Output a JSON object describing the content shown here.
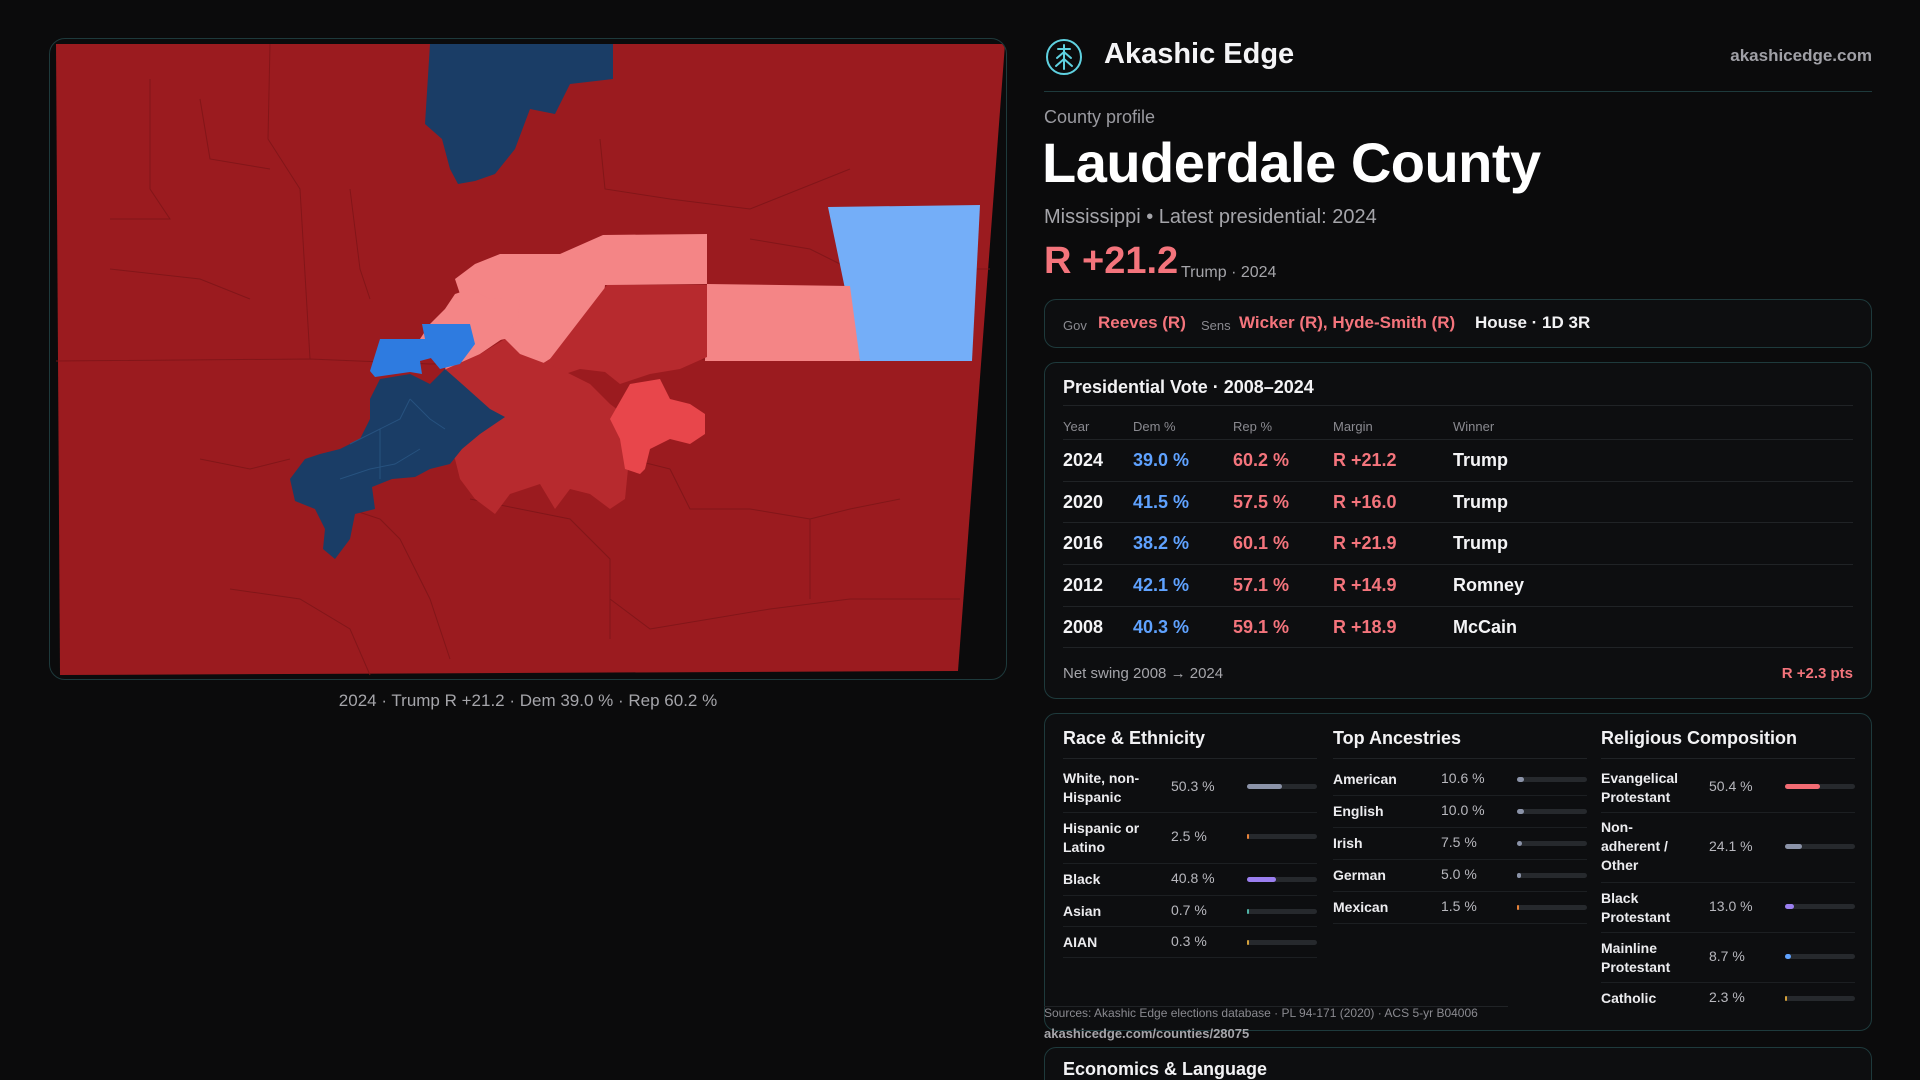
{
  "brand": {
    "name": "Akashic Edge",
    "url": "akashicedge.com",
    "logo_icon": "tree-globe-icon"
  },
  "profile": {
    "eyebrow": "County profile",
    "county": "Lauderdale County",
    "subtitle": "Mississippi • Latest presidential: 2024",
    "margin": "R +21.2",
    "margin_note": "Trump · 2024"
  },
  "officials": {
    "gov_label": "Gov",
    "gov": "Reeves (R)",
    "sens_label": "Sens",
    "sens": "Wicker (R), Hyde-Smith (R)",
    "house": "House · 1D 3R"
  },
  "presidential": {
    "title": "Presidential Vote · 2008–2024",
    "headers": [
      "Year",
      "Dem %",
      "Rep %",
      "Margin",
      "Winner"
    ],
    "rows": [
      {
        "year": "2024",
        "dem": "39.0 %",
        "rep": "60.2 %",
        "margin": "R +21.2",
        "winner": "Trump"
      },
      {
        "year": "2020",
        "dem": "41.5 %",
        "rep": "57.5 %",
        "margin": "R +16.0",
        "winner": "Trump"
      },
      {
        "year": "2016",
        "dem": "38.2 %",
        "rep": "60.1 %",
        "margin": "R +21.9",
        "winner": "Trump"
      },
      {
        "year": "2012",
        "dem": "42.1 %",
        "rep": "57.1 %",
        "margin": "R +14.9",
        "winner": "Romney"
      },
      {
        "year": "2008",
        "dem": "40.3 %",
        "rep": "59.1 %",
        "margin": "R +18.9",
        "winner": "McCain"
      }
    ],
    "swing_label": "Net swing 2008 → 2024",
    "swing_value": "R +2.3 pts"
  },
  "race": {
    "title": "Race & Ethnicity",
    "items": [
      {
        "label": "White, non-Hispanic",
        "pct": "50.3 %",
        "value": 50.3,
        "color": "#8b93a8"
      },
      {
        "label": "Hispanic or Latino",
        "pct": "2.5 %",
        "value": 2.5,
        "color": "#e8833a"
      },
      {
        "label": "Black",
        "pct": "40.8 %",
        "value": 40.8,
        "color": "#9b7ff0"
      },
      {
        "label": "Asian",
        "pct": "0.7 %",
        "value": 0.7,
        "color": "#4fb3a6"
      },
      {
        "label": "AIAN",
        "pct": "0.3 %",
        "value": 0.3,
        "color": "#d4a13b"
      }
    ]
  },
  "ancestry": {
    "title": "Top Ancestries",
    "items": [
      {
        "label": "American",
        "pct": "10.6 %",
        "value": 10.6,
        "color": "#8b93a8"
      },
      {
        "label": "English",
        "pct": "10.0 %",
        "value": 10.0,
        "color": "#8b93a8"
      },
      {
        "label": "Irish",
        "pct": "7.5 %",
        "value": 7.5,
        "color": "#8b93a8"
      },
      {
        "label": "German",
        "pct": "5.0 %",
        "value": 5.0,
        "color": "#8b93a8"
      },
      {
        "label": "Mexican",
        "pct": "1.5 %",
        "value": 1.5,
        "color": "#e8833a"
      }
    ]
  },
  "religion": {
    "title": "Religious Composition",
    "items": [
      {
        "label": "Evangelical Protestant",
        "pct": "50.4 %",
        "value": 50.4,
        "color": "#f26b73"
      },
      {
        "label": "Non-adherent / Other",
        "pct": "24.1 %",
        "value": 24.1,
        "color": "#8b93a8"
      },
      {
        "label": "Black Protestant",
        "pct": "13.0 %",
        "value": 13.0,
        "color": "#9b7ff0"
      },
      {
        "label": "Mainline Protestant",
        "pct": "8.7 %",
        "value": 8.7,
        "color": "#5fa2ff"
      },
      {
        "label": "Catholic",
        "pct": "2.3 %",
        "value": 2.3,
        "color": "#d4a13b"
      }
    ]
  },
  "sources": {
    "line1": "Sources: Akashic Edge elections database · PL 94-171 (2020) · ACS 5-yr B04006",
    "line2": "akashicedge.com/counties/28075"
  },
  "economics": {
    "title": "Economics & Language"
  },
  "map": {
    "caption": "2024 · Trump R +21.2 · Dem 39.0 % · Rep 60.2 %",
    "colors": {
      "solid_r": "#9b1b1f",
      "likely_r": "#b72a2e",
      "lean_r": "#d63a3f",
      "tilt_r": "#f48586",
      "solid_d": "#1a3d66",
      "likely_d": "#2e7be0",
      "tilt_d": "#74aef8"
    }
  }
}
